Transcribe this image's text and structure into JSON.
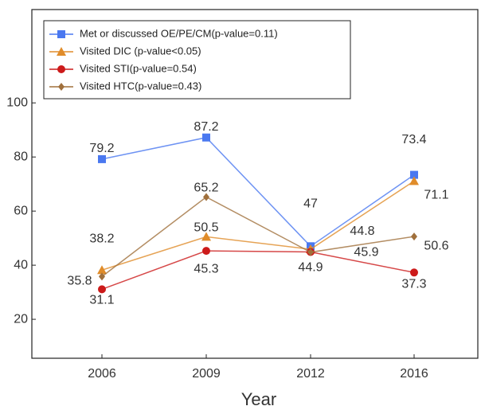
{
  "chart_data": {
    "type": "line",
    "x_label": "Year",
    "categories": [
      "2006",
      "2009",
      "2012",
      "2016"
    ],
    "series": [
      {
        "name": "Met or discussed OE/PE/CM(p-value=0.11)",
        "color": "#4a78f0",
        "values": [
          79.2,
          87.2,
          47,
          73.4
        ]
      },
      {
        "name": "Visited DIC (p-value<0.05)",
        "color": "#e08c2a",
        "values": [
          38.2,
          50.5,
          45.9,
          71.1
        ]
      },
      {
        "name": "Visited STI(p-value=0.54)",
        "color": "#cc1a1a",
        "values": [
          31.1,
          45.3,
          44.9,
          37.3
        ]
      },
      {
        "name": "Visited HTC(p-value=0.43)",
        "color": "#a0703c",
        "values": [
          35.8,
          65.2,
          44.8,
          50.6
        ]
      }
    ],
    "ylim": [
      5.6,
      134.5
    ],
    "yticks": [
      20,
      40,
      60,
      80,
      100
    ],
    "legend": "upper left"
  }
}
